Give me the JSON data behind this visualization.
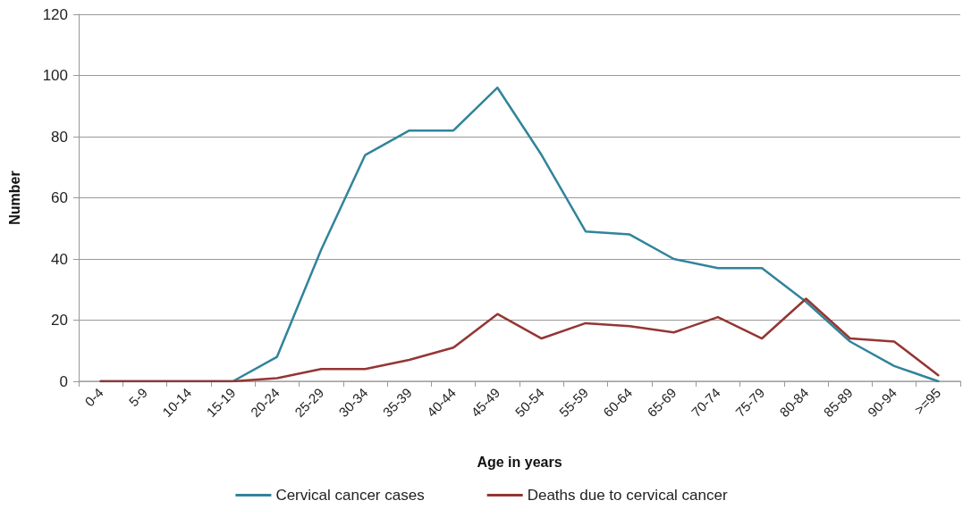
{
  "chart_data": {
    "type": "line",
    "xlabel": "Age in years",
    "ylabel": "Number",
    "categories": [
      "0-4",
      "5-9",
      "10-14",
      "15-19",
      "20-24",
      "25-29",
      "30-34",
      "35-39",
      "40-44",
      "45-49",
      "50-54",
      "55-59",
      "60-64",
      "65-69",
      "70-74",
      "75-79",
      "80-84",
      "85-89",
      "90-94",
      ">=95"
    ],
    "series": [
      {
        "name": "Cervical cancer cases",
        "color": "#31849b",
        "values": [
          0,
          0,
          0,
          0,
          8,
          43,
          74,
          82,
          82,
          96,
          74,
          49,
          48,
          40,
          37,
          37,
          26,
          13,
          5,
          0
        ]
      },
      {
        "name": "Deaths due to cervical cancer",
        "color": "#943634",
        "values": [
          0,
          0,
          0,
          0,
          1,
          4,
          4,
          7,
          11,
          22,
          14,
          19,
          18,
          16,
          21,
          14,
          27,
          14,
          13,
          2
        ]
      }
    ],
    "ylim": [
      0,
      120
    ],
    "yticks": [
      0,
      20,
      40,
      60,
      80,
      100,
      120
    ],
    "grid": "y",
    "legend": "bottom",
    "marker": "none",
    "line_style": "solid"
  }
}
